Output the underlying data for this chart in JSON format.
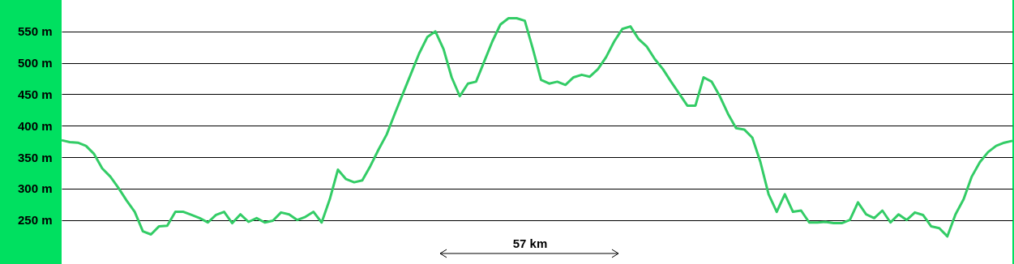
{
  "chart_data": {
    "type": "line",
    "categories": [
      null,
      null,
      null,
      null,
      null,
      null,
      null,
      null,
      null,
      null,
      null,
      null,
      null,
      null,
      null,
      null,
      null,
      null,
      null,
      null,
      null,
      null,
      null,
      null,
      null,
      null,
      null,
      null,
      null,
      null,
      null,
      null,
      null,
      null,
      null,
      null,
      null,
      null,
      null,
      null,
      null,
      null,
      null,
      null,
      null,
      null,
      null,
      null,
      null,
      null,
      null,
      null,
      null,
      null,
      null,
      null,
      null,
      null,
      null,
      null,
      null,
      null,
      null,
      null,
      null,
      null,
      null,
      null,
      null,
      null,
      null,
      null,
      null,
      null,
      null,
      null,
      null,
      null,
      null,
      null,
      null,
      null,
      null,
      null,
      null,
      null,
      null,
      null,
      null,
      null,
      null,
      null,
      null,
      null,
      null,
      null,
      null,
      null,
      null,
      null,
      null,
      null,
      null,
      null,
      null,
      null,
      null,
      null,
      null,
      null,
      null,
      null,
      null,
      null,
      null,
      null,
      null,
      null
    ],
    "series": [
      {
        "color": "#33cc66",
        "values": [
          377,
          374,
          373,
          368,
          355,
          332,
          319,
          301,
          281,
          263,
          232,
          227,
          240,
          241,
          263,
          263,
          258,
          253,
          246,
          258,
          263,
          245,
          259,
          247,
          253,
          246,
          249,
          262,
          259,
          250,
          255,
          263,
          246,
          283,
          330,
          315,
          310,
          313,
          336,
          362,
          386,
          419,
          451,
          483,
          515,
          541,
          550,
          522,
          477,
          447,
          467,
          470,
          502,
          534,
          561,
          571,
          571,
          567,
          522,
          473,
          467,
          470,
          465,
          477,
          481,
          478,
          490,
          509,
          534,
          554,
          558,
          538,
          526,
          506,
          490,
          470,
          451,
          432,
          432,
          477,
          470,
          447,
          419,
          396,
          394,
          381,
          342,
          291,
          263,
          291,
          263,
          265,
          246,
          246,
          247,
          245,
          245,
          250,
          278,
          259,
          253,
          265,
          246,
          259,
          250,
          262,
          258,
          240,
          237,
          224,
          259,
          283,
          319,
          342,
          358,
          368,
          373,
          376
        ]
      }
    ],
    "ylim": [
      180,
      600
    ],
    "yticks": [
      {
        "value": 250,
        "label": "250 m"
      },
      {
        "value": 300,
        "label": "300 m"
      },
      {
        "value": 350,
        "label": "350 m"
      },
      {
        "value": 400,
        "label": "400 m"
      },
      {
        "value": 450,
        "label": "450 m"
      },
      {
        "value": 500,
        "label": "500 m"
      },
      {
        "value": 550,
        "label": "550 m"
      }
    ],
    "grid": "y",
    "marker": "none",
    "line_style": "solid",
    "annotations": [
      "57 km"
    ]
  }
}
